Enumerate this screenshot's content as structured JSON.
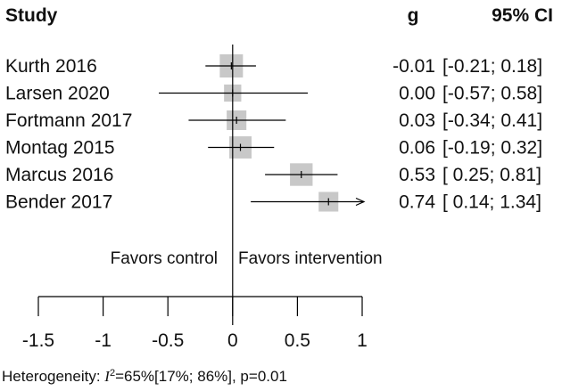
{
  "header": {
    "study": "Study",
    "effect": "g",
    "ci": "95% CI"
  },
  "studies": [
    {
      "name": "Kurth 2016",
      "g": -0.01,
      "lo": -0.21,
      "hi": 0.18,
      "weight": 1.0,
      "g_text": "-0.01",
      "ci_text": "[-0.21; 0.18]"
    },
    {
      "name": "Larsen 2020",
      "g": 0.0,
      "lo": -0.57,
      "hi": 0.58,
      "weight": 0.55,
      "g_text": "0.00",
      "ci_text": "[-0.57; 0.58]"
    },
    {
      "name": "Fortmann 2017",
      "g": 0.03,
      "lo": -0.34,
      "hi": 0.41,
      "weight": 0.72,
      "g_text": "0.03",
      "ci_text": "[-0.34; 0.41]"
    },
    {
      "name": "Montag 2015",
      "g": 0.06,
      "lo": -0.19,
      "hi": 0.32,
      "weight": 0.92,
      "g_text": "0.06",
      "ci_text": "[-0.19; 0.32]"
    },
    {
      "name": "Marcus 2016",
      "g": 0.53,
      "lo": 0.25,
      "hi": 0.81,
      "weight": 0.95,
      "g_text": "0.53",
      "ci_text": "[ 0.25; 0.81]"
    },
    {
      "name": "Bender 2017",
      "g": 0.74,
      "lo": 0.14,
      "hi": 1.34,
      "weight": 0.72,
      "g_text": "0.74",
      "ci_text": "[ 0.14; 1.34]",
      "arrow_right": true
    }
  ],
  "axis": {
    "min": -1.5,
    "max": 1,
    "ticks": [
      "-1.5",
      "-1",
      "-0.5",
      "0",
      "0.5",
      "1"
    ]
  },
  "favors": {
    "left": "Favors control",
    "right": "Favors intervention"
  },
  "heterogeneity": {
    "prefix": "Heterogeneity: ",
    "stat": "I",
    "stat_sup": "2",
    "rest": "=65%[17%; 86%], p=0.01"
  },
  "colors": {
    "box": "#c8c8c8",
    "line": "#000000",
    "text": "#111111"
  },
  "chart_data": {
    "type": "forest",
    "categories": [
      "Kurth 2016",
      "Larsen 2020",
      "Fortmann 2017",
      "Montag 2015",
      "Marcus 2016",
      "Bender 2017"
    ],
    "values": [
      -0.01,
      0.0,
      0.03,
      0.06,
      0.53,
      0.74
    ],
    "ci_lower": [
      -0.21,
      -0.57,
      -0.34,
      -0.19,
      0.25,
      0.14
    ],
    "ci_upper": [
      0.18,
      0.58,
      0.41,
      0.32,
      0.81,
      1.34
    ],
    "xlim": [
      -1.5,
      1
    ],
    "xticks": [
      -1.5,
      -1,
      -0.5,
      0,
      0.5,
      1
    ],
    "grid": false
  }
}
